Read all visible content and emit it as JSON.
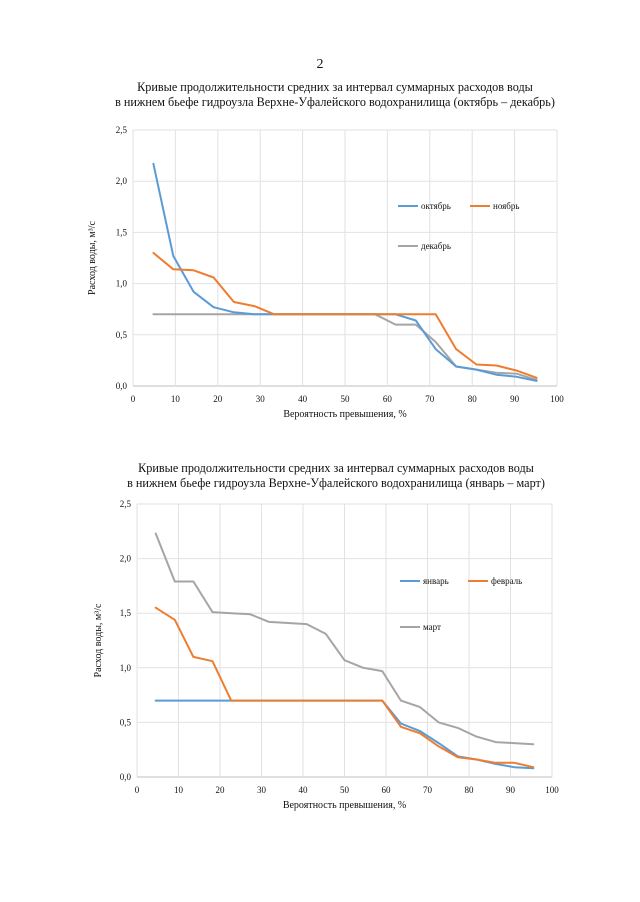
{
  "page": {
    "number": "2"
  },
  "chart_data": [
    {
      "type": "line",
      "title_lines": [
        "Кривые продолжительности средних за интервал суммарных расходов воды",
        "в нижнем бьефе гидроузла Верхне-Уфалейского водохранилища (октябрь – декабрь)"
      ],
      "xlabel": "Вероятность превышения, %",
      "ylabel": "Расход воды, м³/с",
      "xlim": [
        0,
        100
      ],
      "ylim": [
        0,
        2.5
      ],
      "xticks": [
        "0",
        "10",
        "20",
        "30",
        "40",
        "50",
        "60",
        "70",
        "80",
        "90",
        "100"
      ],
      "yticks": [
        "0,0",
        "0,5",
        "1,0",
        "1,5",
        "2,0",
        "2,5"
      ],
      "grid": true,
      "legend_position": "right",
      "series": [
        {
          "name": "октябрь",
          "color": "#5B9BD5",
          "x": [
            4.8,
            9.5,
            14.3,
            19,
            23.8,
            28.6,
            33.3,
            38.1,
            42.9,
            47.6,
            52.4,
            57.1,
            61.9,
            66.7,
            71.4,
            76.2,
            81,
            85.7,
            90.5,
            95.2
          ],
          "y": [
            2.17,
            1.27,
            0.92,
            0.77,
            0.72,
            0.7,
            0.7,
            0.7,
            0.7,
            0.7,
            0.7,
            0.7,
            0.7,
            0.64,
            0.36,
            0.19,
            0.16,
            0.11,
            0.09,
            0.05
          ]
        },
        {
          "name": "ноябрь",
          "color": "#ED7D31",
          "x": [
            4.8,
            9.5,
            14.3,
            19,
            23.8,
            28.6,
            33.3,
            38.1,
            42.9,
            47.6,
            52.4,
            57.1,
            61.9,
            66.7,
            71.4,
            76.2,
            81,
            85.7,
            90.5,
            95.2
          ],
          "y": [
            1.3,
            1.14,
            1.13,
            1.06,
            0.82,
            0.78,
            0.7,
            0.7,
            0.7,
            0.7,
            0.7,
            0.7,
            0.7,
            0.7,
            0.7,
            0.36,
            0.21,
            0.2,
            0.15,
            0.08
          ]
        },
        {
          "name": "декабрь",
          "color": "#A5A5A5",
          "x": [
            4.8,
            9.5,
            14.3,
            19,
            23.8,
            28.6,
            33.3,
            38.1,
            42.9,
            47.6,
            52.4,
            57.1,
            61.9,
            66.7,
            71.4,
            76.2,
            81,
            85.7,
            90.5,
            95.2
          ],
          "y": [
            0.7,
            0.7,
            0.7,
            0.7,
            0.7,
            0.7,
            0.7,
            0.7,
            0.7,
            0.7,
            0.7,
            0.7,
            0.6,
            0.6,
            0.43,
            0.19,
            0.16,
            0.13,
            0.12,
            0.06
          ]
        }
      ]
    },
    {
      "type": "line",
      "title_lines": [
        "Кривые продолжительности средних за интервал суммарных расходов воды",
        "в нижнем бьефе гидроузла Верхне-Уфалейского водохранилища (январь – март)"
      ],
      "xlabel": "Вероятность превышения, %",
      "ylabel": "Расход воды, м³/с",
      "xlim": [
        0,
        100
      ],
      "ylim": [
        0,
        2.5
      ],
      "xticks": [
        "0",
        "10",
        "20",
        "30",
        "40",
        "50",
        "60",
        "70",
        "80",
        "90",
        "100"
      ],
      "yticks": [
        "0,0",
        "0,5",
        "1,0",
        "1,5",
        "2,0",
        "2,5"
      ],
      "grid": true,
      "legend_position": "right",
      "series": [
        {
          "name": "январь",
          "color": "#5B9BD5",
          "x": [
            4.5,
            9.1,
            13.6,
            18.2,
            22.7,
            27.3,
            31.8,
            36.4,
            40.9,
            45.5,
            50,
            54.5,
            59.1,
            63.6,
            68.2,
            72.7,
            77.3,
            81.8,
            86.4,
            90.9,
            95.5
          ],
          "y": [
            0.7,
            0.7,
            0.7,
            0.7,
            0.7,
            0.7,
            0.7,
            0.7,
            0.7,
            0.7,
            0.7,
            0.7,
            0.7,
            0.49,
            0.42,
            0.31,
            0.19,
            0.16,
            0.12,
            0.09,
            0.08
          ]
        },
        {
          "name": "февраль",
          "color": "#ED7D31",
          "x": [
            4.5,
            9.1,
            13.6,
            18.2,
            22.7,
            27.3,
            31.8,
            36.4,
            40.9,
            45.5,
            50,
            54.5,
            59.1,
            63.6,
            68.2,
            72.7,
            77.3,
            81.8,
            86.4,
            90.9,
            95.5
          ],
          "y": [
            1.55,
            1.44,
            1.1,
            1.06,
            0.7,
            0.7,
            0.7,
            0.7,
            0.7,
            0.7,
            0.7,
            0.7,
            0.7,
            0.46,
            0.4,
            0.28,
            0.18,
            0.16,
            0.13,
            0.13,
            0.09
          ]
        },
        {
          "name": "март",
          "color": "#A5A5A5",
          "x": [
            4.5,
            9.1,
            13.6,
            18.2,
            22.7,
            27.3,
            31.8,
            36.4,
            40.9,
            45.5,
            50,
            54.5,
            59.1,
            63.6,
            68.2,
            72.7,
            77.3,
            81.8,
            86.4,
            90.9,
            95.5
          ],
          "y": [
            2.23,
            1.79,
            1.79,
            1.51,
            1.5,
            1.49,
            1.42,
            1.41,
            1.4,
            1.31,
            1.07,
            1.0,
            0.97,
            0.7,
            0.64,
            0.5,
            0.45,
            0.37,
            0.32,
            0.31,
            0.3
          ]
        }
      ]
    }
  ]
}
